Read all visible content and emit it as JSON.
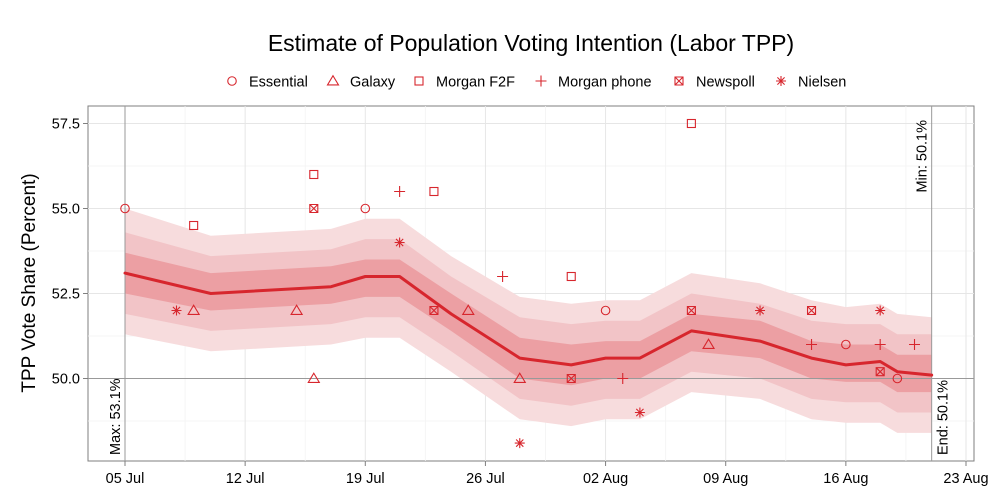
{
  "chart_data": {
    "type": "line",
    "title": "Estimate of Population Voting Intention (Labor TPP)",
    "ylabel": "TPP Vote Share (Percent)",
    "xlabel": "",
    "x_axis": {
      "ticks": [
        {
          "date": "2013-07-05",
          "label": "05 Jul"
        },
        {
          "date": "2013-07-12",
          "label": "12 Jul"
        },
        {
          "date": "2013-07-19",
          "label": "19 Jul"
        },
        {
          "date": "2013-07-26",
          "label": "26 Jul"
        },
        {
          "date": "2013-08-02",
          "label": "02 Aug"
        },
        {
          "date": "2013-08-09",
          "label": "09 Aug"
        },
        {
          "date": "2013-08-16",
          "label": "16 Aug"
        },
        {
          "date": "2013-08-23",
          "label": "23 Aug"
        }
      ],
      "range": [
        "2013-07-04",
        "2013-08-24"
      ]
    },
    "y_axis": {
      "ticks": [
        {
          "value": 50.0,
          "label": "50.0"
        },
        {
          "value": 52.5,
          "label": "52.5"
        },
        {
          "value": 55.0,
          "label": "55.0"
        },
        {
          "value": 57.5,
          "label": "57.5"
        }
      ],
      "range": [
        47.5,
        58.0
      ]
    },
    "grid": true,
    "legend_position": "top",
    "colors": {
      "line": "#d7262d",
      "band_outer": "#f7dcdd",
      "band_mid": "#f2c4c7",
      "band_inner": "#ec9fa3",
      "marker": "#d7262d",
      "ref_line": "#999999"
    },
    "legend": [
      {
        "name": "Essential",
        "symbol": "circle"
      },
      {
        "name": "Galaxy",
        "symbol": "triangle"
      },
      {
        "name": "Morgan F2F",
        "symbol": "square"
      },
      {
        "name": "Morgan phone",
        "symbol": "plus"
      },
      {
        "name": "Newspoll",
        "symbol": "boxcross"
      },
      {
        "name": "Nielsen",
        "symbol": "asterisk"
      }
    ],
    "estimate": [
      {
        "x": "2013-07-05",
        "y": 53.1,
        "lo1": 52.5,
        "hi1": 53.7,
        "lo2": 51.9,
        "hi2": 54.3,
        "lo3": 51.3,
        "hi3": 55.0
      },
      {
        "x": "2013-07-10",
        "y": 52.5,
        "lo1": 52.0,
        "hi1": 53.1,
        "lo2": 51.4,
        "hi2": 53.6,
        "lo3": 50.8,
        "hi3": 54.2
      },
      {
        "x": "2013-07-17",
        "y": 52.7,
        "lo1": 52.2,
        "hi1": 53.3,
        "lo2": 51.6,
        "hi2": 53.8,
        "lo3": 51.0,
        "hi3": 54.4
      },
      {
        "x": "2013-07-19",
        "y": 53.0,
        "lo1": 52.4,
        "hi1": 53.5,
        "lo2": 51.8,
        "hi2": 54.1,
        "lo3": 51.2,
        "hi3": 54.7
      },
      {
        "x": "2013-07-21",
        "y": 53.0,
        "lo1": 52.4,
        "hi1": 53.5,
        "lo2": 51.8,
        "hi2": 54.1,
        "lo3": 51.2,
        "hi3": 54.7
      },
      {
        "x": "2013-07-24",
        "y": 51.9,
        "lo1": 51.4,
        "hi1": 52.5,
        "lo2": 50.8,
        "hi2": 53.0,
        "lo3": 50.2,
        "hi3": 53.6
      },
      {
        "x": "2013-07-28",
        "y": 50.6,
        "lo1": 50.0,
        "hi1": 51.2,
        "lo2": 49.4,
        "hi2": 51.8,
        "lo3": 48.8,
        "hi3": 52.4
      },
      {
        "x": "2013-07-31",
        "y": 50.4,
        "lo1": 49.8,
        "hi1": 51.0,
        "lo2": 49.2,
        "hi2": 51.6,
        "lo3": 48.6,
        "hi3": 52.2
      },
      {
        "x": "2013-08-02",
        "y": 50.6,
        "lo1": 50.0,
        "hi1": 51.1,
        "lo2": 49.4,
        "hi2": 51.7,
        "lo3": 48.8,
        "hi3": 52.3
      },
      {
        "x": "2013-08-04",
        "y": 50.6,
        "lo1": 50.0,
        "hi1": 51.1,
        "lo2": 49.4,
        "hi2": 51.7,
        "lo3": 48.8,
        "hi3": 52.3
      },
      {
        "x": "2013-08-07",
        "y": 51.4,
        "lo1": 50.8,
        "hi1": 51.9,
        "lo2": 50.2,
        "hi2": 52.5,
        "lo3": 49.6,
        "hi3": 53.1
      },
      {
        "x": "2013-08-11",
        "y": 51.1,
        "lo1": 50.6,
        "hi1": 51.7,
        "lo2": 50.0,
        "hi2": 52.2,
        "lo3": 49.4,
        "hi3": 52.8
      },
      {
        "x": "2013-08-14",
        "y": 50.6,
        "lo1": 50.0,
        "hi1": 51.1,
        "lo2": 49.4,
        "hi2": 51.7,
        "lo3": 48.8,
        "hi3": 52.3
      },
      {
        "x": "2013-08-16",
        "y": 50.4,
        "lo1": 49.9,
        "hi1": 51.0,
        "lo2": 49.3,
        "hi2": 51.6,
        "lo3": 48.7,
        "hi3": 52.1
      },
      {
        "x": "2013-08-18",
        "y": 50.5,
        "lo1": 49.9,
        "hi1": 51.0,
        "lo2": 49.3,
        "hi2": 51.6,
        "lo3": 48.7,
        "hi3": 52.2
      },
      {
        "x": "2013-08-19",
        "y": 50.2,
        "lo1": 49.6,
        "hi1": 50.7,
        "lo2": 49.0,
        "hi2": 51.3,
        "lo3": 48.4,
        "hi3": 51.9
      },
      {
        "x": "2013-08-21",
        "y": 50.1,
        "lo1": 49.6,
        "hi1": 50.7,
        "lo2": 49.0,
        "hi2": 51.3,
        "lo3": 48.4,
        "hi3": 51.8
      }
    ],
    "polls": [
      {
        "pollster": "Essential",
        "x": "2013-07-05",
        "y": 55.0
      },
      {
        "pollster": "Essential",
        "x": "2013-07-19",
        "y": 55.0
      },
      {
        "pollster": "Essential",
        "x": "2013-08-02",
        "y": 52.0
      },
      {
        "pollster": "Essential",
        "x": "2013-08-16",
        "y": 51.0
      },
      {
        "pollster": "Essential",
        "x": "2013-08-19",
        "y": 50.0
      },
      {
        "pollster": "Galaxy",
        "x": "2013-07-09",
        "y": 52.0
      },
      {
        "pollster": "Galaxy",
        "x": "2013-07-15",
        "y": 52.0
      },
      {
        "pollster": "Galaxy",
        "x": "2013-07-16",
        "y": 50.0
      },
      {
        "pollster": "Galaxy",
        "x": "2013-07-25",
        "y": 52.0
      },
      {
        "pollster": "Galaxy",
        "x": "2013-07-28",
        "y": 50.0
      },
      {
        "pollster": "Galaxy",
        "x": "2013-08-08",
        "y": 51.0
      },
      {
        "pollster": "Morgan F2F",
        "x": "2013-07-09",
        "y": 54.5
      },
      {
        "pollster": "Morgan F2F",
        "x": "2013-07-16",
        "y": 56.0
      },
      {
        "pollster": "Morgan F2F",
        "x": "2013-07-23",
        "y": 55.5
      },
      {
        "pollster": "Morgan F2F",
        "x": "2013-07-31",
        "y": 53.0
      },
      {
        "pollster": "Morgan F2F",
        "x": "2013-08-07",
        "y": 57.5
      },
      {
        "pollster": "Morgan phone",
        "x": "2013-07-21",
        "y": 55.5
      },
      {
        "pollster": "Morgan phone",
        "x": "2013-07-27",
        "y": 53.0
      },
      {
        "pollster": "Morgan phone",
        "x": "2013-08-03",
        "y": 50.0
      },
      {
        "pollster": "Morgan phone",
        "x": "2013-08-14",
        "y": 51.0
      },
      {
        "pollster": "Morgan phone",
        "x": "2013-08-18",
        "y": 51.0
      },
      {
        "pollster": "Morgan phone",
        "x": "2013-08-20",
        "y": 51.0
      },
      {
        "pollster": "Newspoll",
        "x": "2013-07-16",
        "y": 55.0
      },
      {
        "pollster": "Newspoll",
        "x": "2013-07-23",
        "y": 52.0
      },
      {
        "pollster": "Newspoll",
        "x": "2013-07-31",
        "y": 50.0
      },
      {
        "pollster": "Newspoll",
        "x": "2013-08-07",
        "y": 52.0
      },
      {
        "pollster": "Newspoll",
        "x": "2013-08-14",
        "y": 52.0
      },
      {
        "pollster": "Newspoll",
        "x": "2013-08-18",
        "y": 50.2
      },
      {
        "pollster": "Nielsen",
        "x": "2013-07-08",
        "y": 52.0
      },
      {
        "pollster": "Nielsen",
        "x": "2013-07-21",
        "y": 54.0
      },
      {
        "pollster": "Nielsen",
        "x": "2013-07-28",
        "y": 48.1
      },
      {
        "pollster": "Nielsen",
        "x": "2013-08-04",
        "y": 49.0
      },
      {
        "pollster": "Nielsen",
        "x": "2013-08-11",
        "y": 52.0
      },
      {
        "pollster": "Nielsen",
        "x": "2013-08-18",
        "y": 52.0
      }
    ],
    "reference_lines": {
      "hline": 50.0,
      "vlines": [
        "2013-07-05",
        "2013-08-21"
      ]
    },
    "annotations": [
      {
        "text": "Max: 53.1%",
        "x": "2013-07-05",
        "anchor": "bottom"
      },
      {
        "text": "Min: 50.1%",
        "x": "2013-08-21",
        "anchor": "top"
      },
      {
        "text": "End: 50.1%",
        "x": "2013-08-21",
        "anchor": "bottom"
      }
    ]
  }
}
